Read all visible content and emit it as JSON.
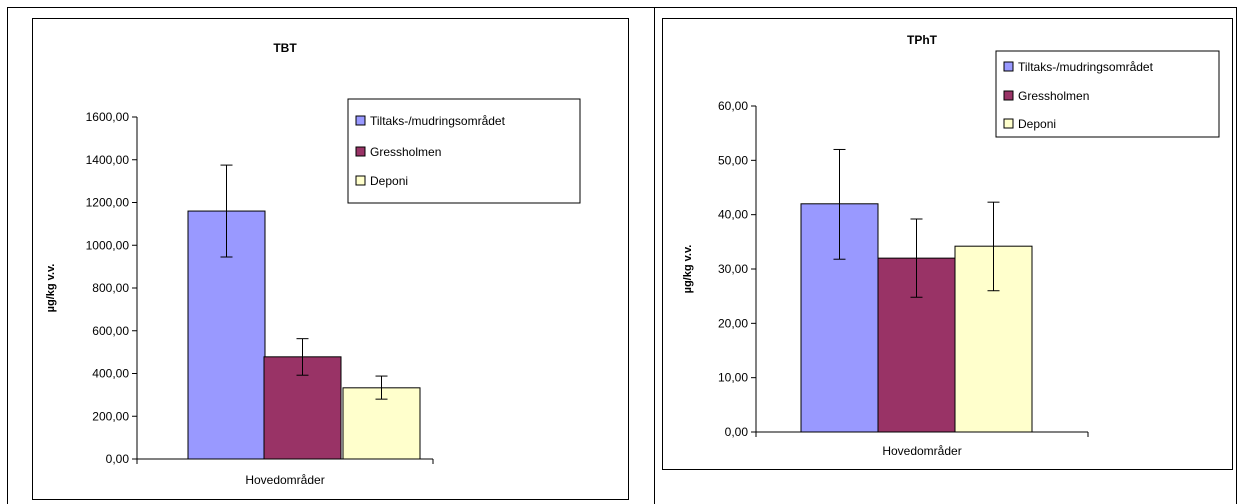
{
  "chart_data": [
    {
      "type": "bar",
      "title": "TBT",
      "xlabel": "Hovedområder",
      "ylabel": "µg/kg v.v.",
      "categories": [
        "Hovedområder"
      ],
      "ylim": [
        0,
        1600
      ],
      "yticks": [
        "0,00",
        "200,00",
        "400,00",
        "600,00",
        "800,00",
        "1000,00",
        "1200,00",
        "1400,00",
        "1600,00"
      ],
      "grid": false,
      "legend_position": "top-right",
      "series": [
        {
          "name": "Tiltaks-/mudringsområdet",
          "color": "#9999ff",
          "values": [
            1160
          ],
          "error_low": [
            945
          ],
          "error_high": [
            1375
          ]
        },
        {
          "name": "Gressholmen",
          "color": "#993366",
          "values": [
            478
          ],
          "error_low": [
            392
          ],
          "error_high": [
            563
          ]
        },
        {
          "name": "Deponi",
          "color": "#ffffcc",
          "values": [
            333
          ],
          "error_low": [
            280
          ],
          "error_high": [
            388
          ]
        }
      ]
    },
    {
      "type": "bar",
      "title": "TPhT",
      "xlabel": "Hovedområder",
      "ylabel": "µg/kg v.v.",
      "categories": [
        "Hovedområder"
      ],
      "ylim": [
        0,
        60
      ],
      "yticks": [
        "0,00",
        "10,00",
        "20,00",
        "30,00",
        "40,00",
        "50,00",
        "60,00"
      ],
      "grid": false,
      "legend_position": "top-right",
      "series": [
        {
          "name": "Tiltaks-/mudringsområdet",
          "color": "#9999ff",
          "values": [
            42.0
          ],
          "error_low": [
            31.8
          ],
          "error_high": [
            52.0
          ]
        },
        {
          "name": "Gressholmen",
          "color": "#993366",
          "values": [
            32.0
          ],
          "error_low": [
            24.8
          ],
          "error_high": [
            39.2
          ]
        },
        {
          "name": "Deponi",
          "color": "#ffffcc",
          "values": [
            34.2
          ],
          "error_low": [
            26.0
          ],
          "error_high": [
            42.3
          ]
        }
      ]
    }
  ]
}
